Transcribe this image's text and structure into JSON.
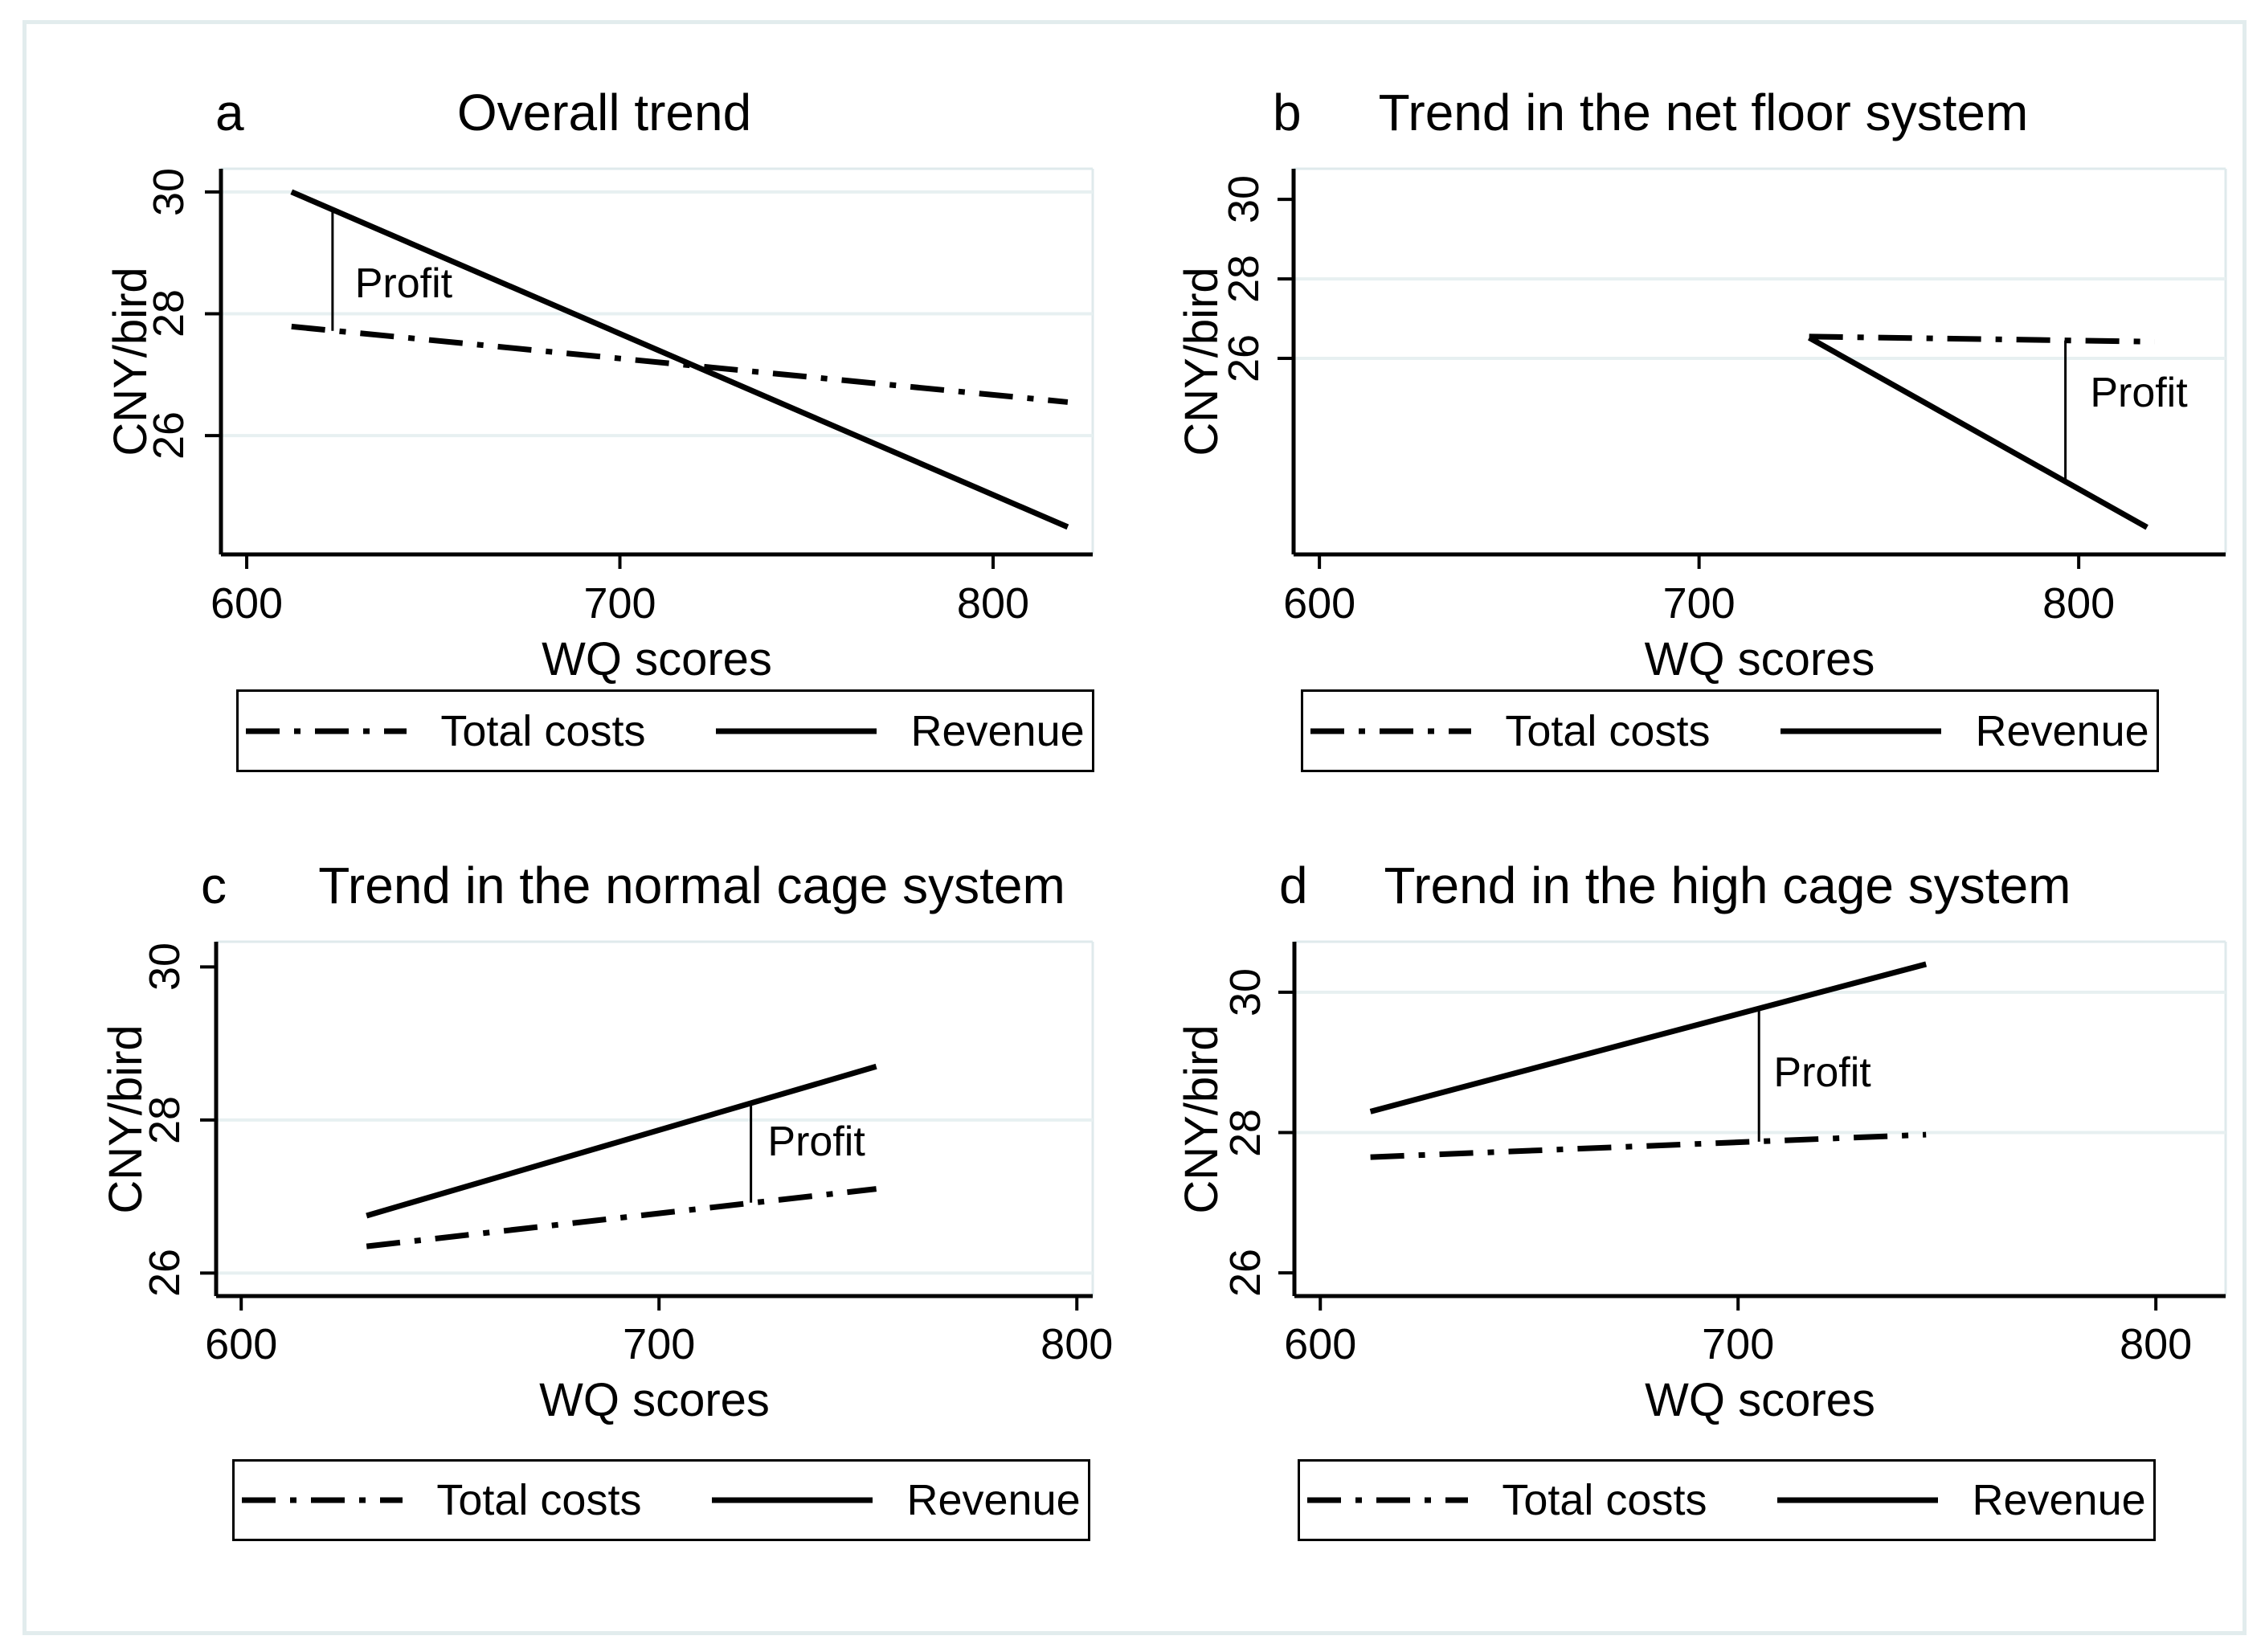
{
  "figure": {
    "background": "#ffffff",
    "frame_color": "#e2eced"
  },
  "colors": {
    "series_line": "#000000",
    "gridline": "#e7f0f1",
    "plot_border": "#dfeaec",
    "axis": "#000000",
    "text": "#000000"
  },
  "legend": {
    "items": [
      {
        "style": "dashdot",
        "label": "Total costs"
      },
      {
        "style": "solid",
        "label": "Revenue"
      }
    ]
  },
  "chart_data": [
    {
      "id": "a",
      "type": "line",
      "letter": "a",
      "title": "Overall trend",
      "xlabel": "WQ scores",
      "ylabel": "CNY/bird",
      "xlim": [
        593.1,
        826.7
      ],
      "ylim": [
        24.05,
        30.38
      ],
      "xticks": [
        600,
        700,
        800
      ],
      "yticks": [
        30,
        28,
        26
      ],
      "gridlines_y": [
        26,
        28,
        30
      ],
      "grid": true,
      "legend_position": "bottom",
      "series": [
        {
          "name": "Total costs",
          "style": "dashdot",
          "x": [
            612,
            820
          ],
          "y": [
            27.79,
            26.55
          ]
        },
        {
          "name": "Revenue",
          "style": "solid",
          "x": [
            612,
            820
          ],
          "y": [
            30.0,
            24.5
          ]
        }
      ],
      "profit": {
        "label": "Profit",
        "x": 623,
        "y_from": 27.72,
        "y_to": 29.71,
        "label_x": 629,
        "label_y": 28.5
      }
    },
    {
      "id": "b",
      "type": "line",
      "letter": "b",
      "title": "Trend in the net floor system",
      "xlabel": "WQ scores",
      "ylabel": "CNY/bird",
      "xlim": [
        593.2,
        838.7
      ],
      "ylim": [
        21.07,
        30.77
      ],
      "xticks": [
        600,
        700,
        800
      ],
      "yticks": [
        30,
        28,
        26
      ],
      "gridlines_y": [
        26,
        28
      ],
      "grid": true,
      "legend_position": "bottom",
      "series": [
        {
          "name": "Total costs",
          "style": "dashdot",
          "x": [
            729,
            820
          ],
          "y": [
            26.55,
            26.42
          ]
        },
        {
          "name": "Revenue",
          "style": "solid",
          "x": [
            729,
            818
          ],
          "y": [
            26.52,
            21.75
          ]
        }
      ],
      "profit": {
        "label": "Profit",
        "x": 796.5,
        "y_from": 22.92,
        "y_to": 26.45,
        "label_x": 803,
        "label_y": 25.13
      }
    },
    {
      "id": "c",
      "type": "line",
      "letter": "c",
      "title": "Trend in the normal cage system",
      "xlabel": "WQ scores",
      "ylabel": "CNY/bird",
      "xlim": [
        594.0,
        803.8
      ],
      "ylim": [
        25.7,
        30.33
      ],
      "xticks": [
        600,
        700,
        800
      ],
      "yticks": [
        30,
        28,
        26
      ],
      "gridlines_y": [
        26,
        28
      ],
      "grid": true,
      "legend_position": "bottom",
      "series": [
        {
          "name": "Total costs",
          "style": "dashdot",
          "x": [
            630,
            752
          ],
          "y": [
            26.35,
            27.1
          ]
        },
        {
          "name": "Revenue",
          "style": "solid",
          "x": [
            630,
            752
          ],
          "y": [
            26.75,
            28.7
          ]
        }
      ],
      "profit": {
        "label": "Profit",
        "x": 722,
        "y_from": 26.92,
        "y_to": 28.22,
        "label_x": 726,
        "label_y": 27.72
      }
    },
    {
      "id": "d",
      "type": "line",
      "letter": "d",
      "title": "Trend in the high cage system",
      "xlabel": "WQ scores",
      "ylabel": "CNY/bird",
      "xlim": [
        593.8,
        816.7
      ],
      "ylim": [
        25.67,
        30.72
      ],
      "xticks": [
        600,
        700,
        800
      ],
      "yticks": [
        30,
        28,
        26
      ],
      "gridlines_y": [
        28,
        30
      ],
      "grid": true,
      "legend_position": "bottom",
      "series": [
        {
          "name": "Total costs",
          "style": "dashdot",
          "x": [
            612,
            745
          ],
          "y": [
            27.65,
            27.97
          ]
        },
        {
          "name": "Revenue",
          "style": "solid",
          "x": [
            612,
            745
          ],
          "y": [
            28.3,
            30.4
          ]
        }
      ],
      "profit": {
        "label": "Profit",
        "x": 705,
        "y_from": 27.87,
        "y_to": 29.77,
        "label_x": 708.5,
        "label_y": 28.85
      }
    }
  ]
}
